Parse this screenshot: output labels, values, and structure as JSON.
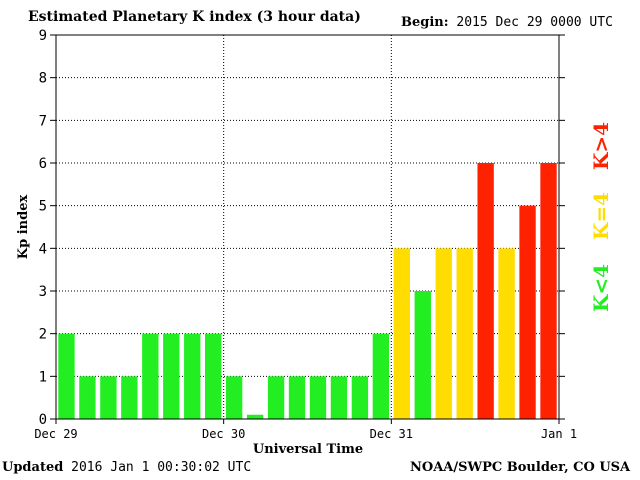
{
  "header": {
    "title": "Estimated Planetary K index (3 hour data)",
    "begin_label": "Begin:",
    "begin_value": "2015 Dec 29 0000 UTC"
  },
  "footer": {
    "updated_label": "Updated",
    "updated_value": "2016 Jan  1 00:30:02 UTC",
    "credit": "NOAA/SWPC Boulder, CO USA"
  },
  "legend": {
    "low": "K<4",
    "mid": "K=4",
    "high": "K>4"
  },
  "colors": {
    "low": "#22ee22",
    "mid": "#ffdd00",
    "high": "#ff2200"
  },
  "chart_data": {
    "type": "bar",
    "xlabel": "Universal Time",
    "ylabel": "Kp index",
    "ylim": [
      0,
      9
    ],
    "yticks": [
      0,
      1,
      2,
      3,
      4,
      5,
      6,
      7,
      8,
      9
    ],
    "xtick_labels": [
      "Dec 29",
      "Dec 30",
      "Dec 31",
      "Jan 1"
    ],
    "grid": "dotted at each day and each Kp level",
    "values": [
      2,
      1,
      1,
      1,
      2,
      2,
      2,
      2,
      1,
      0.1,
      1,
      1,
      1,
      1,
      1,
      2,
      4,
      3,
      4,
      4,
      6,
      4,
      5,
      6
    ]
  }
}
